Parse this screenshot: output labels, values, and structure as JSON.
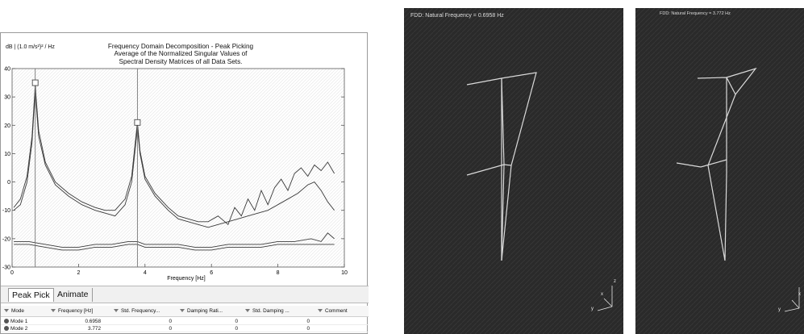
{
  "fdd_plot": {
    "y_units": "dB | (1.0 m/s²)² / Hz",
    "title_lines": [
      "Frequency Domain Decomposition - Peak Picking",
      "Average of the Normalized Singular Values of",
      "Spectral Density Matrices of all Data Sets."
    ]
  },
  "chart_data": {
    "type": "line",
    "xlabel": "Frequency [Hz]",
    "ylabel": "dB | (1.0 m/s²)² / Hz",
    "xlim": [
      0,
      10
    ],
    "ylim": [
      -30,
      40
    ],
    "x_ticks": [
      0,
      2,
      4,
      6,
      8,
      10
    ],
    "y_ticks": [
      -30,
      -20,
      -10,
      0,
      10,
      20,
      30,
      40
    ],
    "grid": false,
    "series": [
      {
        "x": [
          0.05,
          0.25,
          0.45,
          0.6,
          0.68,
          0.6958,
          0.72,
          0.8,
          1.0,
          1.3,
          1.7,
          2.1,
          2.5,
          2.8,
          3.1,
          3.4,
          3.6,
          3.7,
          3.772,
          3.85,
          4.0,
          4.3,
          4.7,
          5.0,
          5.3,
          5.6,
          5.9,
          6.2,
          6.5,
          6.7,
          6.9,
          7.1,
          7.3,
          7.5,
          7.7,
          7.9,
          8.1,
          8.3,
          8.5,
          8.7,
          8.9,
          9.1,
          9.3,
          9.5,
          9.7
        ],
        "y": [
          -9,
          -6,
          2,
          16,
          31,
          35,
          30,
          18,
          7,
          0,
          -4,
          -7,
          -9,
          -10,
          -10,
          -6,
          2,
          13,
          21,
          11,
          2,
          -4,
          -9,
          -12,
          -13,
          -14,
          -14,
          -12,
          -15,
          -9,
          -12,
          -6,
          -10,
          -3,
          -8,
          -2,
          1,
          -3,
          3,
          5,
          2,
          6,
          4,
          7,
          3
        ]
      },
      {
        "x": [
          0.05,
          0.25,
          0.45,
          0.6,
          0.68,
          0.6958,
          0.72,
          0.8,
          1.0,
          1.3,
          1.7,
          2.1,
          2.5,
          2.8,
          3.1,
          3.4,
          3.6,
          3.7,
          3.772,
          3.85,
          4.0,
          4.3,
          4.7,
          5.0,
          5.3,
          5.6,
          5.9,
          6.2,
          6.5,
          6.8,
          7.1,
          7.4,
          7.7,
          8.0,
          8.3,
          8.6,
          8.9,
          9.1,
          9.3,
          9.5,
          9.7
        ],
        "y": [
          -10,
          -8,
          0,
          14,
          29,
          33,
          28,
          16,
          6,
          -1,
          -5,
          -8,
          -10,
          -11,
          -12,
          -8,
          0,
          11,
          19,
          10,
          1,
          -5,
          -10,
          -13,
          -14,
          -15,
          -16,
          -15,
          -14,
          -13,
          -12,
          -11,
          -10,
          -8,
          -6,
          -4,
          -1,
          0,
          -3,
          -7,
          -10
        ]
      },
      {
        "x": [
          0.05,
          0.5,
          1.0,
          1.5,
          2.0,
          2.5,
          3.0,
          3.5,
          3.772,
          4.0,
          4.5,
          5.0,
          5.5,
          6.0,
          6.5,
          7.0,
          7.5,
          8.0,
          8.5,
          9.0,
          9.3,
          9.5,
          9.7
        ],
        "y": [
          -21,
          -21,
          -22,
          -23,
          -23,
          -22,
          -22,
          -21,
          -21,
          -22,
          -22,
          -22,
          -23,
          -23,
          -22,
          -22,
          -22,
          -21,
          -21,
          -20,
          -21,
          -18,
          -20
        ]
      },
      {
        "x": [
          0.05,
          0.5,
          1.0,
          1.5,
          2.0,
          2.5,
          3.0,
          3.5,
          3.772,
          4.0,
          4.5,
          5.0,
          5.5,
          6.0,
          6.5,
          7.0,
          7.5,
          8.0,
          8.5,
          9.0,
          9.5,
          9.7
        ],
        "y": [
          -22,
          -22,
          -23,
          -24,
          -24,
          -23,
          -23,
          -22,
          -22,
          -23,
          -23,
          -23,
          -24,
          -24,
          -23,
          -23,
          -23,
          -22,
          -22,
          -22,
          -22,
          -22
        ]
      }
    ],
    "peak_picks": [
      {
        "x": 0.6958,
        "y": 35
      },
      {
        "x": 3.772,
        "y": 21
      }
    ]
  },
  "tabs": [
    {
      "label": "Peak Pick"
    },
    {
      "label": "Animate"
    }
  ],
  "table": {
    "columns": [
      "Mode",
      "Frequency [Hz]",
      "Std. Frequency...",
      "Damping Rati...",
      "Std. Damping ...",
      "Comment"
    ],
    "rows": [
      {
        "mode": "Mode 1",
        "frequency": "0.6958",
        "std_frequency": "0",
        "damping": "0",
        "std_damping": "0"
      },
      {
        "mode": "Mode 2",
        "frequency": "3.772",
        "std_frequency": "0",
        "damping": "0",
        "std_damping": "0"
      }
    ]
  },
  "views": [
    {
      "title": "FDD: Natural Frequency = 0.6958 Hz",
      "axes": {
        "z": "z",
        "x": "x",
        "y": "y"
      }
    },
    {
      "title": "FDD: Natural Frequency = 3.772 Hz",
      "axes": {
        "z": "z",
        "x": "x",
        "y": "y"
      }
    }
  ]
}
